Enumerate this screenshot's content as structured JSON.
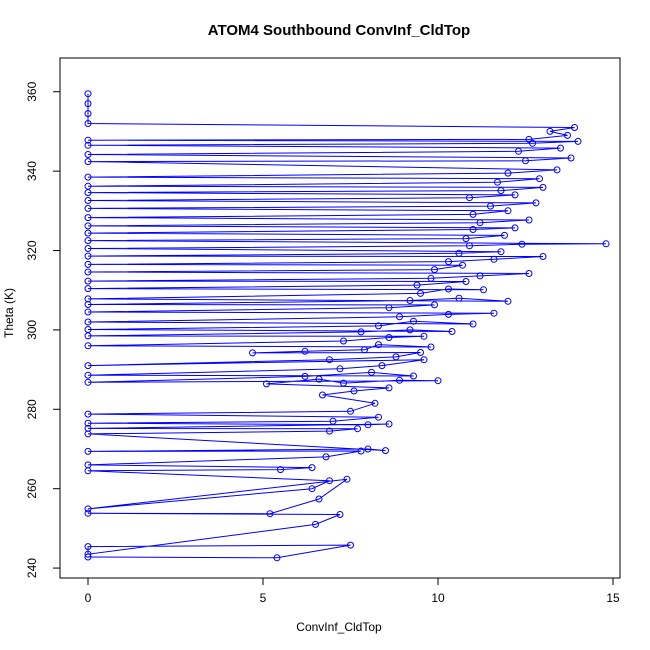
{
  "chart_data": {
    "type": "line",
    "title": "ATOM4 Southbound ConvInf_CldTop",
    "xlabel": "ConvInf_CldTop",
    "ylabel": "Theta (K)",
    "xlim": [
      -0.8,
      15.2
    ],
    "ylim": [
      237.5,
      368.5
    ],
    "xticks": [
      0,
      5,
      10,
      15
    ],
    "yticks": [
      240,
      260,
      280,
      300,
      320,
      340,
      360
    ],
    "grid": false,
    "legend": "none",
    "line_color": "#0000ff",
    "series": [
      {
        "values": [
          [
            0,
            242.8
          ],
          [
            5.4,
            242.6
          ],
          [
            7.5,
            245.8
          ],
          [
            0,
            245.4
          ],
          [
            0,
            243.5
          ],
          [
            6.5,
            251.0
          ],
          [
            7.2,
            253.5
          ],
          [
            0,
            253.8
          ],
          [
            5.2,
            253.7
          ],
          [
            6.6,
            257.4
          ],
          [
            7.4,
            262.4
          ],
          [
            0,
            254.9
          ],
          [
            6.4,
            260.0
          ],
          [
            6.9,
            262.0
          ],
          [
            0,
            264.5
          ],
          [
            5.5,
            264.8
          ],
          [
            6.4,
            265.3
          ],
          [
            0,
            266.0
          ],
          [
            6.8,
            268.0
          ],
          [
            7.8,
            269.5
          ],
          [
            0,
            269.4
          ],
          [
            8.0,
            270.0
          ],
          [
            8.5,
            269.6
          ],
          [
            0,
            273.8
          ],
          [
            6.9,
            274.5
          ],
          [
            7.7,
            275.1
          ],
          [
            0,
            275.2
          ],
          [
            8.6,
            276.3
          ],
          [
            8.0,
            276.1
          ],
          [
            0,
            276.5
          ],
          [
            7.0,
            277.0
          ],
          [
            8.3,
            278.0
          ],
          [
            0,
            278.8
          ],
          [
            7.5,
            279.5
          ],
          [
            8.2,
            281.5
          ],
          [
            6.7,
            283.6
          ],
          [
            7.6,
            284.6
          ],
          [
            8.6,
            285.4
          ],
          [
            5.1,
            286.4
          ],
          [
            6.6,
            287.6
          ],
          [
            7.3,
            286.6
          ],
          [
            8.9,
            287.3
          ],
          [
            10.0,
            287.2
          ],
          [
            0,
            286.8
          ],
          [
            6.2,
            288.3
          ],
          [
            8.1,
            289.3
          ],
          [
            9.3,
            288.4
          ],
          [
            0,
            288.6
          ],
          [
            7.2,
            290.2
          ],
          [
            8.4,
            291.0
          ],
          [
            9.6,
            292.5
          ],
          [
            0,
            291.0
          ],
          [
            6.9,
            292.5
          ],
          [
            8.8,
            293.2
          ],
          [
            9.5,
            294.3
          ],
          [
            4.7,
            294.2
          ],
          [
            6.2,
            294.6
          ],
          [
            7.9,
            295.0
          ],
          [
            8.3,
            296.3
          ],
          [
            9.8,
            295.7
          ],
          [
            0,
            296.0
          ],
          [
            7.3,
            297.2
          ],
          [
            8.6,
            298.1
          ],
          [
            9.6,
            298.4
          ],
          [
            0,
            298.5
          ],
          [
            7.8,
            299.5
          ],
          [
            9.2,
            300.0
          ],
          [
            10.4,
            299.6
          ],
          [
            0,
            300.1
          ],
          [
            8.3,
            301.0
          ],
          [
            9.3,
            302.2
          ],
          [
            11.0,
            301.5
          ],
          [
            0,
            302.0
          ],
          [
            8.9,
            303.3
          ],
          [
            10.3,
            303.9
          ],
          [
            11.6,
            304.2
          ],
          [
            0,
            304.5
          ],
          [
            8.6,
            305.6
          ],
          [
            9.9,
            306.3
          ],
          [
            0,
            306.4
          ],
          [
            9.2,
            307.4
          ],
          [
            10.6,
            308.0
          ],
          [
            12.0,
            307.2
          ],
          [
            0,
            307.8
          ],
          [
            9.5,
            309.2
          ],
          [
            10.3,
            310.3
          ],
          [
            11.3,
            310.1
          ],
          [
            0,
            310.4
          ],
          [
            9.4,
            311.3
          ],
          [
            10.8,
            312.2
          ],
          [
            0,
            312.3
          ],
          [
            9.8,
            313.0
          ],
          [
            11.2,
            313.6
          ],
          [
            12.6,
            314.2
          ],
          [
            0,
            314.6
          ],
          [
            9.9,
            315.2
          ],
          [
            10.7,
            316.3
          ],
          [
            0,
            316.5
          ],
          [
            10.3,
            317.2
          ],
          [
            11.6,
            317.8
          ],
          [
            13.0,
            318.5
          ],
          [
            0,
            318.6
          ],
          [
            10.6,
            319.3
          ],
          [
            11.8,
            319.7
          ],
          [
            0,
            320.5
          ],
          [
            10.9,
            321.2
          ],
          [
            12.4,
            321.6
          ],
          [
            14.8,
            321.7
          ],
          [
            0,
            322.5
          ],
          [
            10.8,
            323.0
          ],
          [
            11.9,
            323.8
          ],
          [
            0,
            324.4
          ],
          [
            11.0,
            325.3
          ],
          [
            12.2,
            325.7
          ],
          [
            0,
            326.2
          ],
          [
            11.2,
            327.0
          ],
          [
            12.6,
            327.7
          ],
          [
            0,
            328.3
          ],
          [
            11.0,
            329.1
          ],
          [
            12.0,
            330.0
          ],
          [
            0,
            330.6
          ],
          [
            11.5,
            331.2
          ],
          [
            12.8,
            332.0
          ],
          [
            0,
            332.6
          ],
          [
            10.9,
            333.3
          ],
          [
            12.2,
            334.0
          ],
          [
            0,
            334.6
          ],
          [
            11.8,
            335.1
          ],
          [
            13.0,
            335.9
          ],
          [
            0,
            336.2
          ],
          [
            11.7,
            337.2
          ],
          [
            12.9,
            338.1
          ],
          [
            0,
            338.5
          ],
          [
            12.0,
            339.5
          ],
          [
            13.4,
            340.3
          ],
          [
            0,
            342.4
          ],
          [
            12.5,
            342.6
          ],
          [
            13.8,
            343.3
          ],
          [
            0,
            344.2
          ],
          [
            12.3,
            345.0
          ],
          [
            13.5,
            345.8
          ],
          [
            0,
            346.5
          ],
          [
            12.7,
            347.0
          ],
          [
            14.0,
            347.5
          ],
          [
            0,
            347.8
          ],
          [
            12.6,
            348.0
          ],
          [
            13.7,
            349.0
          ],
          [
            13.2,
            350.0
          ],
          [
            13.9,
            351.0
          ],
          [
            0,
            352.0
          ],
          [
            0,
            354.5
          ],
          [
            0,
            357.0
          ],
          [
            0,
            359.5
          ]
        ]
      }
    ]
  }
}
